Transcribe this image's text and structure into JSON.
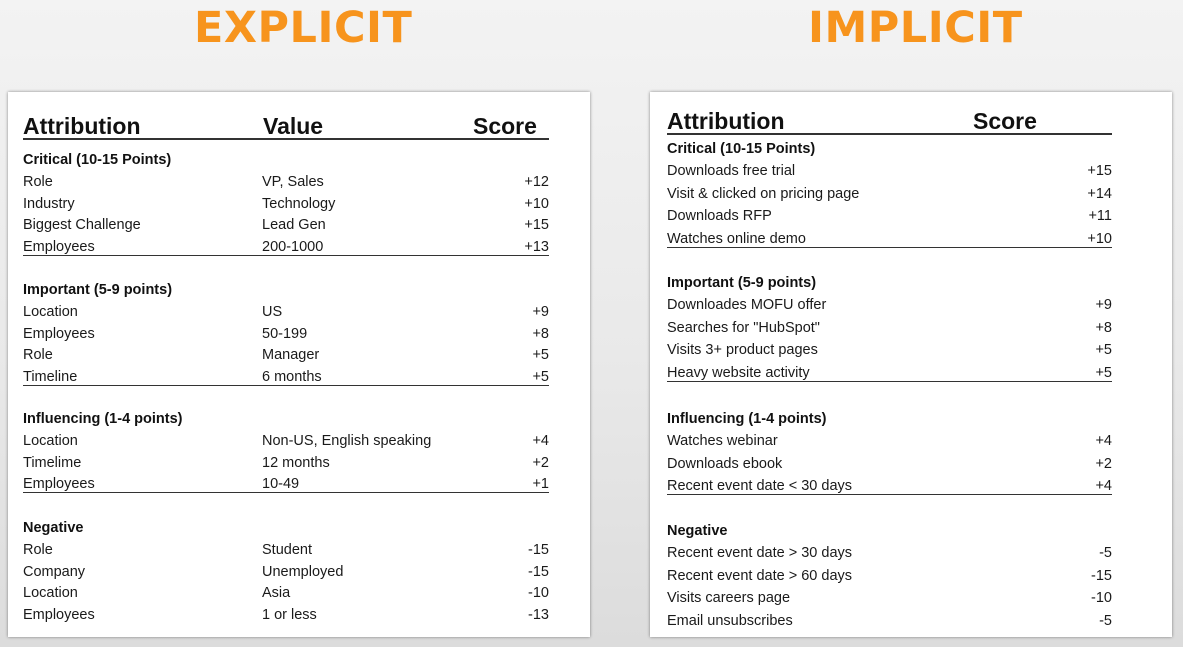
{
  "titles": {
    "explicit": "EXPLICIT",
    "implicit": "IMPLICIT"
  },
  "colors": {
    "title_orange": "#f7941d",
    "text": "#1a1a1a",
    "card_bg": "#ffffff"
  },
  "explicit": {
    "headers": {
      "attribution": "Attribution",
      "value": "Value",
      "score": "Score"
    },
    "sections": [
      {
        "title": "Critical (10-15 Points)",
        "rows": [
          {
            "attr": "Role",
            "value": "VP, Sales",
            "score": "+12"
          },
          {
            "attr": "Industry",
            "value": "Technology",
            "score": "+10"
          },
          {
            "attr": "Biggest Challenge",
            "value": "Lead Gen",
            "score": "+15"
          },
          {
            "attr": "Employees",
            "value": "200-1000",
            "score": "+13"
          }
        ]
      },
      {
        "title": "Important (5-9 points)",
        "rows": [
          {
            "attr": "Location",
            "value": "US",
            "score": "+9"
          },
          {
            "attr": "Employees",
            "value": "50-199",
            "score": "+8"
          },
          {
            "attr": "Role",
            "value": "Manager",
            "score": "+5"
          },
          {
            "attr": "Timeline",
            "value": "6 months",
            "score": "+5"
          }
        ]
      },
      {
        "title": "Influencing (1-4 points)",
        "rows": [
          {
            "attr": "Location",
            "value": "Non-US, English speaking",
            "score": "+4"
          },
          {
            "attr": "Timelime",
            "value": "12 months",
            "score": "+2"
          },
          {
            "attr": "Employees",
            "value": "10-49",
            "score": "+1"
          }
        ]
      },
      {
        "title": "Negative",
        "rows": [
          {
            "attr": "Role",
            "value": "Student",
            "score": "-15"
          },
          {
            "attr": "Company",
            "value": "Unemployed",
            "score": "-15"
          },
          {
            "attr": "Location",
            "value": "Asia",
            "score": "-10"
          },
          {
            "attr": "Employees",
            "value": "1 or less",
            "score": "-13"
          }
        ]
      }
    ]
  },
  "implicit": {
    "headers": {
      "attribution": "Attribution",
      "score": "Score"
    },
    "sections": [
      {
        "title": "Critical (10-15 Points)",
        "rows": [
          {
            "attr": "Downloads free trial",
            "score": "+15"
          },
          {
            "attr": "Visit & clicked on pricing page",
            "score": "+14"
          },
          {
            "attr": "Downloads RFP",
            "score": "+11"
          },
          {
            "attr": "Watches online demo",
            "score": "+10"
          }
        ]
      },
      {
        "title": "Important (5-9 points)",
        "rows": [
          {
            "attr": "Downloades MOFU offer",
            "score": "+9"
          },
          {
            "attr": "Searches for \"HubSpot\"",
            "score": "+8"
          },
          {
            "attr": "Visits 3+ product pages",
            "score": "+5"
          },
          {
            "attr": "Heavy website activity",
            "score": "+5"
          }
        ]
      },
      {
        "title": "Influencing (1-4 points)",
        "rows": [
          {
            "attr": "Watches webinar",
            "score": "+4"
          },
          {
            "attr": "Downloads ebook",
            "score": "+2"
          },
          {
            "attr": "Recent event date < 30 days",
            "score": "+4"
          }
        ]
      },
      {
        "title": "Negative",
        "rows": [
          {
            "attr": "Recent event date > 30 days",
            "score": "-5"
          },
          {
            "attr": "Recent event date > 60 days",
            "score": "-15"
          },
          {
            "attr": "Visits careers page",
            "score": "-10"
          },
          {
            "attr": "Email unsubscribes",
            "score": "-5"
          }
        ]
      }
    ]
  }
}
